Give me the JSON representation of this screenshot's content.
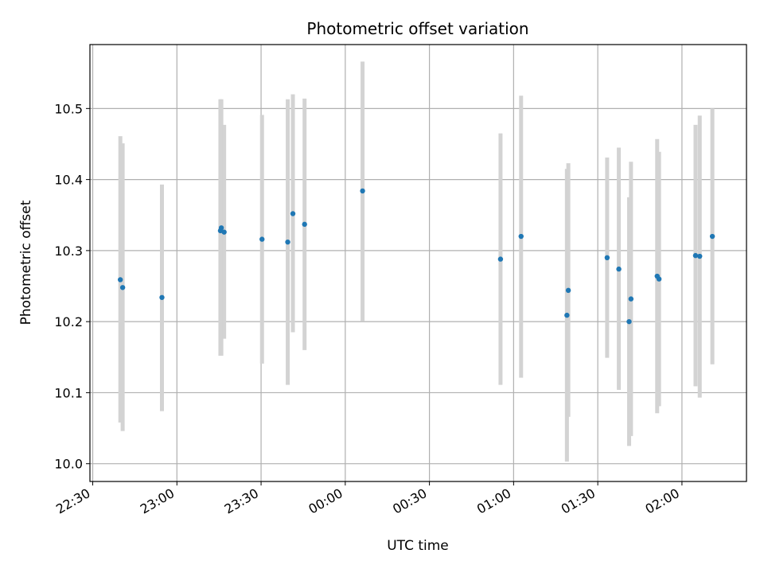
{
  "chart_data": {
    "type": "scatter",
    "title": "Photometric offset variation",
    "xlabel": "UTC time",
    "ylabel": "Photometric offset",
    "x_axis_kind": "time",
    "xlim": [
      "22:29",
      "02:23"
    ],
    "ylim": [
      9.975,
      10.59
    ],
    "grid": true,
    "colors": {
      "points": "#1f77b4",
      "errorbars": "#d3d3d3",
      "grid": "#b0b0b0"
    },
    "x_ticks": [
      {
        "value": "22:30",
        "label": "22:30"
      },
      {
        "value": "23:00",
        "label": "23:00"
      },
      {
        "value": "23:30",
        "label": "23:30"
      },
      {
        "value": "00:00",
        "label": "00:00"
      },
      {
        "value": "00:30",
        "label": "00:30"
      },
      {
        "value": "01:00",
        "label": "01:00"
      },
      {
        "value": "01:30",
        "label": "01:30"
      },
      {
        "value": "02:00",
        "label": "02:00"
      }
    ],
    "y_ticks": [
      {
        "value": 10.0,
        "label": "10.0"
      },
      {
        "value": 10.1,
        "label": "10.1"
      },
      {
        "value": 10.2,
        "label": "10.2"
      },
      {
        "value": 10.3,
        "label": "10.3"
      },
      {
        "value": 10.4,
        "label": "10.4"
      },
      {
        "value": 10.5,
        "label": "10.5"
      }
    ],
    "points": [
      {
        "x": "22:39:50",
        "y": 10.259,
        "ylow": 10.058,
        "yhigh": 10.461
      },
      {
        "x": "22:40:40",
        "y": 10.248,
        "ylow": 10.046,
        "yhigh": 10.451
      },
      {
        "x": "22:54:40",
        "y": 10.234,
        "ylow": 10.074,
        "yhigh": 10.393
      },
      {
        "x": "23:15:30",
        "y": 10.328,
        "ylow": 10.152,
        "yhigh": 10.513
      },
      {
        "x": "23:15:50",
        "y": 10.332,
        "ylow": 10.152,
        "yhigh": 10.513
      },
      {
        "x": "23:16:50",
        "y": 10.326,
        "ylow": 10.176,
        "yhigh": 10.477
      },
      {
        "x": "23:30:20",
        "y": 10.316,
        "ylow": 10.141,
        "yhigh": 10.491
      },
      {
        "x": "23:39:30",
        "y": 10.312,
        "ylow": 10.111,
        "yhigh": 10.513
      },
      {
        "x": "23:41:20",
        "y": 10.352,
        "ylow": 10.185,
        "yhigh": 10.52
      },
      {
        "x": "23:45:30",
        "y": 10.337,
        "ylow": 10.16,
        "yhigh": 10.514
      },
      {
        "x": "00:06:10",
        "y": 10.384,
        "ylow": 10.201,
        "yhigh": 10.566
      },
      {
        "x": "00:55:20",
        "y": 10.288,
        "ylow": 10.111,
        "yhigh": 10.465
      },
      {
        "x": "01:02:40",
        "y": 10.32,
        "ylow": 10.121,
        "yhigh": 10.518
      },
      {
        "x": "01:19:00",
        "y": 10.209,
        "ylow": 10.003,
        "yhigh": 10.415
      },
      {
        "x": "01:19:30",
        "y": 10.244,
        "ylow": 10.066,
        "yhigh": 10.423
      },
      {
        "x": "01:33:20",
        "y": 10.29,
        "ylow": 10.149,
        "yhigh": 10.431
      },
      {
        "x": "01:37:30",
        "y": 10.274,
        "ylow": 10.104,
        "yhigh": 10.445
      },
      {
        "x": "01:41:10",
        "y": 10.2,
        "ylow": 10.025,
        "yhigh": 10.375
      },
      {
        "x": "01:41:50",
        "y": 10.232,
        "ylow": 10.039,
        "yhigh": 10.425
      },
      {
        "x": "01:51:10",
        "y": 10.264,
        "ylow": 10.071,
        "yhigh": 10.457
      },
      {
        "x": "01:51:50",
        "y": 10.26,
        "ylow": 10.081,
        "yhigh": 10.439
      },
      {
        "x": "02:04:50",
        "y": 10.293,
        "ylow": 10.109,
        "yhigh": 10.477
      },
      {
        "x": "02:06:20",
        "y": 10.292,
        "ylow": 10.093,
        "yhigh": 10.49
      },
      {
        "x": "02:10:50",
        "y": 10.32,
        "ylow": 10.14,
        "yhigh": 10.5
      }
    ]
  }
}
